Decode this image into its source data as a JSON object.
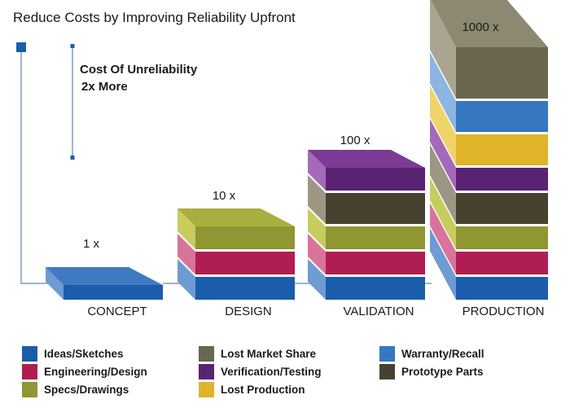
{
  "chart_data": {
    "type": "bar",
    "subtype": "stacked-3d",
    "title": "Reduce Costs by Improving Reliability Upfront",
    "annotation": {
      "line1": "Cost Of Unreliability",
      "line2": "2x More"
    },
    "xlabel": "",
    "ylabel": "",
    "categories": [
      "CONCEPT",
      "DESIGN",
      "VALIDATION",
      "PRODUCTION"
    ],
    "multipliers": [
      "1 x",
      "10 x",
      "100 x",
      "1000 x"
    ],
    "stacks": [
      [
        "Ideas/Sketches"
      ],
      [
        "Ideas/Sketches",
        "Engineering/Design",
        "Specs/Drawings"
      ],
      [
        "Ideas/Sketches",
        "Engineering/Design",
        "Specs/Drawings",
        "Prototype Parts",
        "Verification/Testing"
      ],
      [
        "Ideas/Sketches",
        "Engineering/Design",
        "Specs/Drawings",
        "Prototype Parts",
        "Verification/Testing",
        "Lost Production",
        "Warranty/Recall",
        "Lost Market Share"
      ]
    ],
    "series": [
      {
        "name": "Ideas/Sketches",
        "color": "#1a5dab",
        "side": "#6f9bd3",
        "top": "#3f7ac2",
        "values": [
          1,
          1,
          1,
          1
        ]
      },
      {
        "name": "Engineering/Design",
        "color": "#b01d52",
        "side": "#d8739a",
        "top": "#cc4b7b",
        "values": [
          0,
          1,
          1,
          1
        ]
      },
      {
        "name": "Specs/Drawings",
        "color": "#8f9632",
        "side": "#c7cc5c",
        "top": "#a9af3e",
        "values": [
          0,
          1,
          1,
          1
        ]
      },
      {
        "name": "Lost Market Share",
        "color": "#6b6650",
        "side": "#aaa590",
        "top": "#8d8872",
        "values": [
          0,
          0,
          0,
          1
        ]
      },
      {
        "name": "Verification/Testing",
        "color": "#5a2272",
        "side": "#a569b8",
        "top": "#7c3b95",
        "values": [
          0,
          0,
          1,
          1
        ]
      },
      {
        "name": "Lost Production",
        "color": "#e0b42a",
        "side": "#f0d46a",
        "top": "#e8c444",
        "values": [
          0,
          0,
          0,
          1
        ]
      },
      {
        "name": "Warranty/Recall",
        "color": "#3578bf",
        "side": "#8eb4e0",
        "top": "#5a93cf",
        "values": [
          0,
          0,
          0,
          1
        ]
      },
      {
        "name": "Prototype Parts",
        "color": "#47412f",
        "side": "#9c9785",
        "top": "#6b6652",
        "values": [
          0,
          0,
          1,
          1
        ]
      }
    ],
    "legend": {
      "placement": "bottom",
      "columns": [
        [
          "Ideas/Sketches",
          "Engineering/Design",
          "Specs/Drawings"
        ],
        [
          "Lost Market Share",
          "Verification/Testing",
          "Lost Production"
        ],
        [
          "Warranty/Recall",
          "Prototype Parts"
        ]
      ]
    },
    "grid": false,
    "connector_color": "#7e9cc4",
    "marker_color": "#1a5dab"
  }
}
